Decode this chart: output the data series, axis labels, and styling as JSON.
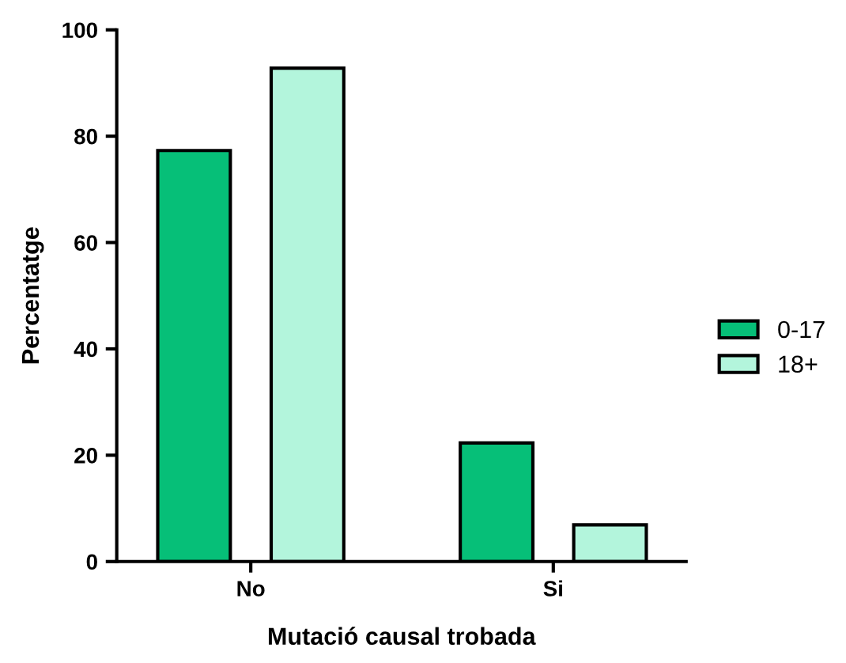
{
  "chart_data": {
    "type": "bar",
    "xlabel": "Mutació causal trobada",
    "ylabel": "Percentatge",
    "categories": [
      "No",
      "Si"
    ],
    "series": [
      {
        "name": "0-17",
        "color": "#06bf78",
        "values": [
          77.3,
          22.3
        ]
      },
      {
        "name": "18+",
        "color": "#b3f5dc",
        "values": [
          92.8,
          6.9
        ]
      }
    ],
    "ylim": [
      0,
      100
    ],
    "yticks": [
      0,
      20,
      40,
      60,
      80,
      100
    ],
    "grid": false,
    "legend": "right"
  }
}
